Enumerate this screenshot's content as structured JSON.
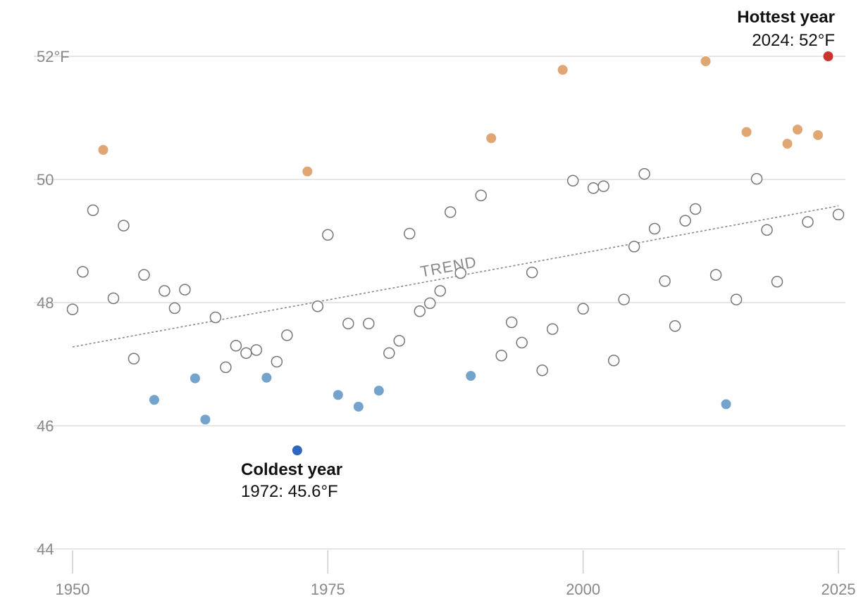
{
  "chart_data": {
    "type": "scatter",
    "title": "",
    "xlabel": "",
    "ylabel": "",
    "xlim": [
      1950,
      2025
    ],
    "ylim": [
      44,
      52.6
    ],
    "grid": "horizontal",
    "x_ticks": [
      1950,
      1975,
      2000,
      2025
    ],
    "x_tick_labels": [
      "1950",
      "1975",
      "2000",
      "2025"
    ],
    "y_ticks": [
      44,
      46,
      48,
      50,
      52
    ],
    "y_tick_labels": [
      "44",
      "46",
      "48",
      "50",
      "52°F"
    ],
    "colors": {
      "warm": "#E0A673",
      "cold": "#74A3CB",
      "hottest": "#C8352C",
      "coldest": "#2F66C2",
      "normal_stroke": "#777777",
      "trend": "#888888",
      "grid": "#dddddd"
    },
    "points": [
      {
        "x": 1950,
        "y": 47.89,
        "c": "normal"
      },
      {
        "x": 1951,
        "y": 48.5,
        "c": "normal"
      },
      {
        "x": 1952,
        "y": 49.5,
        "c": "normal"
      },
      {
        "x": 1953,
        "y": 50.48,
        "c": "warm"
      },
      {
        "x": 1954,
        "y": 48.07,
        "c": "normal"
      },
      {
        "x": 1955,
        "y": 49.25,
        "c": "normal"
      },
      {
        "x": 1956,
        "y": 47.09,
        "c": "normal"
      },
      {
        "x": 1957,
        "y": 48.45,
        "c": "normal"
      },
      {
        "x": 1958,
        "y": 46.42,
        "c": "cold"
      },
      {
        "x": 1959,
        "y": 48.19,
        "c": "normal"
      },
      {
        "x": 1960,
        "y": 47.91,
        "c": "normal"
      },
      {
        "x": 1961,
        "y": 48.21,
        "c": "normal"
      },
      {
        "x": 1962,
        "y": 46.77,
        "c": "cold"
      },
      {
        "x": 1963,
        "y": 46.1,
        "c": "cold"
      },
      {
        "x": 1964,
        "y": 47.76,
        "c": "normal"
      },
      {
        "x": 1965,
        "y": 46.95,
        "c": "normal"
      },
      {
        "x": 1966,
        "y": 47.3,
        "c": "normal"
      },
      {
        "x": 1967,
        "y": 47.18,
        "c": "normal"
      },
      {
        "x": 1968,
        "y": 47.23,
        "c": "normal"
      },
      {
        "x": 1969,
        "y": 46.78,
        "c": "cold"
      },
      {
        "x": 1970,
        "y": 47.04,
        "c": "normal"
      },
      {
        "x": 1971,
        "y": 47.47,
        "c": "normal"
      },
      {
        "x": 1972,
        "y": 45.6,
        "c": "coldest"
      },
      {
        "x": 1973,
        "y": 50.13,
        "c": "warm"
      },
      {
        "x": 1974,
        "y": 47.94,
        "c": "normal"
      },
      {
        "x": 1975,
        "y": 49.1,
        "c": "normal"
      },
      {
        "x": 1976,
        "y": 46.5,
        "c": "cold"
      },
      {
        "x": 1977,
        "y": 47.66,
        "c": "normal"
      },
      {
        "x": 1978,
        "y": 46.31,
        "c": "cold"
      },
      {
        "x": 1979,
        "y": 47.66,
        "c": "normal"
      },
      {
        "x": 1980,
        "y": 46.57,
        "c": "cold"
      },
      {
        "x": 1981,
        "y": 47.18,
        "c": "normal"
      },
      {
        "x": 1982,
        "y": 47.38,
        "c": "normal"
      },
      {
        "x": 1983,
        "y": 49.12,
        "c": "normal"
      },
      {
        "x": 1984,
        "y": 47.86,
        "c": "normal"
      },
      {
        "x": 1985,
        "y": 47.99,
        "c": "normal"
      },
      {
        "x": 1986,
        "y": 48.19,
        "c": "normal"
      },
      {
        "x": 1987,
        "y": 49.47,
        "c": "normal"
      },
      {
        "x": 1988,
        "y": 48.48,
        "c": "normal"
      },
      {
        "x": 1989,
        "y": 46.81,
        "c": "cold"
      },
      {
        "x": 1990,
        "y": 49.74,
        "c": "normal"
      },
      {
        "x": 1991,
        "y": 50.67,
        "c": "warm"
      },
      {
        "x": 1992,
        "y": 47.14,
        "c": "normal"
      },
      {
        "x": 1993,
        "y": 47.68,
        "c": "normal"
      },
      {
        "x": 1994,
        "y": 47.35,
        "c": "normal"
      },
      {
        "x": 1995,
        "y": 48.49,
        "c": "normal"
      },
      {
        "x": 1996,
        "y": 46.9,
        "c": "normal"
      },
      {
        "x": 1997,
        "y": 47.57,
        "c": "normal"
      },
      {
        "x": 1998,
        "y": 51.78,
        "c": "warm"
      },
      {
        "x": 1999,
        "y": 49.98,
        "c": "normal"
      },
      {
        "x": 2000,
        "y": 47.9,
        "c": "normal"
      },
      {
        "x": 2001,
        "y": 49.86,
        "c": "normal"
      },
      {
        "x": 2002,
        "y": 49.89,
        "c": "normal"
      },
      {
        "x": 2003,
        "y": 47.06,
        "c": "normal"
      },
      {
        "x": 2004,
        "y": 48.05,
        "c": "normal"
      },
      {
        "x": 2005,
        "y": 48.91,
        "c": "normal"
      },
      {
        "x": 2006,
        "y": 50.09,
        "c": "normal"
      },
      {
        "x": 2007,
        "y": 49.2,
        "c": "normal"
      },
      {
        "x": 2008,
        "y": 48.35,
        "c": "normal"
      },
      {
        "x": 2009,
        "y": 47.62,
        "c": "normal"
      },
      {
        "x": 2010,
        "y": 49.33,
        "c": "normal"
      },
      {
        "x": 2011,
        "y": 49.52,
        "c": "normal"
      },
      {
        "x": 2012,
        "y": 51.92,
        "c": "warm"
      },
      {
        "x": 2013,
        "y": 48.45,
        "c": "normal"
      },
      {
        "x": 2014,
        "y": 46.35,
        "c": "cold"
      },
      {
        "x": 2015,
        "y": 48.05,
        "c": "normal"
      },
      {
        "x": 2016,
        "y": 50.77,
        "c": "warm"
      },
      {
        "x": 2017,
        "y": 50.01,
        "c": "normal"
      },
      {
        "x": 2018,
        "y": 49.18,
        "c": "normal"
      },
      {
        "x": 2019,
        "y": 48.34,
        "c": "normal"
      },
      {
        "x": 2020,
        "y": 50.58,
        "c": "warm"
      },
      {
        "x": 2021,
        "y": 50.81,
        "c": "warm"
      },
      {
        "x": 2022,
        "y": 49.31,
        "c": "normal"
      },
      {
        "x": 2023,
        "y": 50.72,
        "c": "warm"
      },
      {
        "x": 2024,
        "y": 52.0,
        "c": "hottest"
      },
      {
        "x": 2025,
        "y": 49.43,
        "c": "normal"
      }
    ],
    "trend": {
      "label": "TREND",
      "start": {
        "x": 1950,
        "y": 47.28
      },
      "end": {
        "x": 2025,
        "y": 49.57
      }
    },
    "annotations": {
      "hottest": {
        "title": "Hottest year",
        "text": "2024: 52°F"
      },
      "coldest": {
        "title": "Coldest year",
        "text": "1972: 45.6°F"
      }
    }
  }
}
